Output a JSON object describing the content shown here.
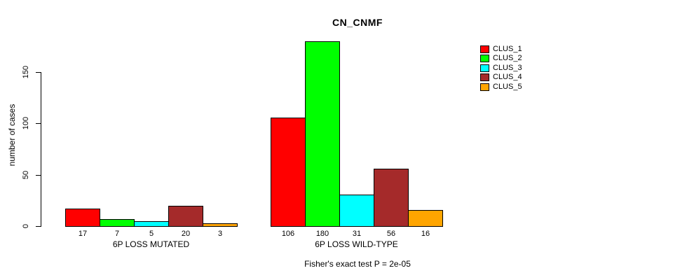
{
  "chart_data": {
    "type": "bar",
    "title": "CN_CNMF",
    "ylabel": "number of cases",
    "yticks": [
      0,
      50,
      100,
      150
    ],
    "ylim": [
      0,
      150
    ],
    "grid": false,
    "legend_position": "right",
    "categories": [
      "6P LOSS MUTATED",
      "6P LOSS WILD-TYPE"
    ],
    "series": [
      {
        "name": "CLUS_1",
        "color": "#FF0000",
        "values": [
          17,
          106
        ]
      },
      {
        "name": "CLUS_2",
        "color": "#00FF00",
        "values": [
          7,
          180
        ]
      },
      {
        "name": "CLUS_3",
        "color": "#00FFFF",
        "values": [
          5,
          31
        ]
      },
      {
        "name": "CLUS_4",
        "color": "#A52A2A",
        "values": [
          20,
          56
        ]
      },
      {
        "name": "CLUS_5",
        "color": "#FFA500",
        "values": [
          3,
          16
        ]
      }
    ],
    "bar_value_labels": true,
    "annotation": "Fisher's exact test P = 2e-05"
  }
}
